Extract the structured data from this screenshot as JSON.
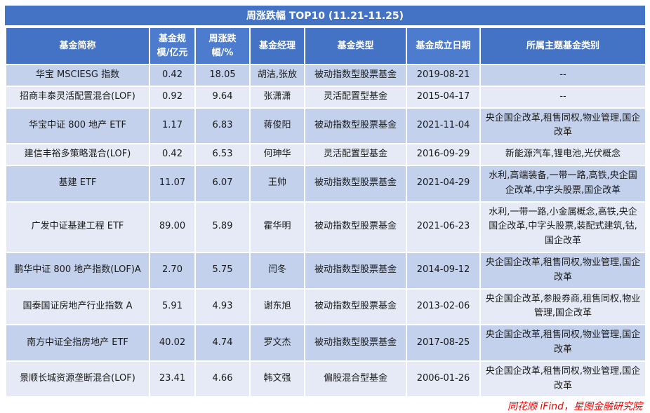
{
  "title": "周涨跌幅 TOP10 (11.21-11.25)",
  "source_note": "同花顺 iFind，星图金融研究院",
  "colors": {
    "header_bg": "#4472c4",
    "header_bg_light": "#4d7ccf",
    "row_odd": "#c3d1ec",
    "row_even": "#e6eaf6",
    "source_text": "#ff0000"
  },
  "table": {
    "columns": [
      "基金简称",
      "基金规模/亿元",
      "周涨跌幅/%",
      "基金经理",
      "基金类型",
      "基金成立日期",
      "所属主题基金类别"
    ],
    "rows": [
      [
        "华宝 MSCIESG 指数",
        "0.42",
        "18.05",
        "胡洁,张放",
        "被动指数型股票基金",
        "2019-08-21",
        "--"
      ],
      [
        "招商丰泰灵活配置混合(LOF)",
        "0.92",
        "9.64",
        "张潇潇",
        "灵活配置型基金",
        "2015-04-17",
        "--"
      ],
      [
        "华宝中证 800 地产 ETF",
        "1.17",
        "6.83",
        "蒋俊阳",
        "被动指数型股票基金",
        "2021-11-04",
        "央企国企改革,租售同权,物业管理,国企改革"
      ],
      [
        "建信丰裕多策略混合(LOF)",
        "0.42",
        "6.53",
        "何珅华",
        "灵活配置型基金",
        "2016-09-29",
        "新能源汽车,锂电池,光伏概念"
      ],
      [
        "基建 ETF",
        "11.07",
        "6.07",
        "王帅",
        "被动指数型股票基金",
        "2021-04-29",
        "水利,高端装备,一带一路,高铁,央企国企改革,中字头股票,国企改革"
      ],
      [
        "广发中证基建工程 ETF",
        "89.00",
        "5.89",
        "霍华明",
        "被动指数型股票基金",
        "2021-06-23",
        "水利,一带一路,小金属概念,高铁,央企国企改革,中字头股票,装配式建筑,钴,国企改革"
      ],
      [
        "鹏华中证 800 地产指数(LOF)A",
        "2.70",
        "5.75",
        "闫冬",
        "被动指数型股票基金",
        "2014-09-12",
        "央企国企改革,租售同权,物业管理,国企改革"
      ],
      [
        "国泰国证房地产行业指数 A",
        "5.91",
        "4.93",
        "谢东旭",
        "被动指数型股票基金",
        "2013-02-06",
        "央企国企改革,参股券商,租售同权,物业管理,国企改革"
      ],
      [
        "南方中证全指房地产 ETF",
        "40.02",
        "4.74",
        "罗文杰",
        "被动指数型股票基金",
        "2017-08-25",
        "央企国企改革,租售同权,物业管理,国企改革"
      ],
      [
        "景顺长城资源垄断混合(LOF)",
        "23.41",
        "4.66",
        "韩文强",
        "偏股混合型基金",
        "2006-01-26",
        "央企国企改革,租售同权,物业管理,国企改革"
      ]
    ]
  }
}
